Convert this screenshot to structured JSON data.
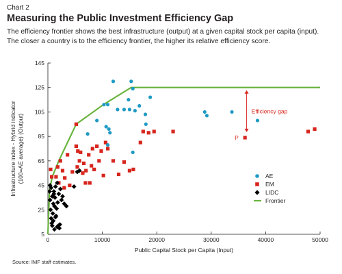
{
  "header": {
    "chart_label": "Chart 2",
    "title": "Measuring the Public Investment Efficiency Gap",
    "subtitle_line1": "The efficiency frontier shows the best infrastructure (output) at a given capital stock per capita (input).",
    "subtitle_line2": "The closer a country is to the efficiency frontier, the higher its relative efficiency score."
  },
  "source": "Source: IMF staff estimates.",
  "colors": {
    "AE": "#1e9ac4",
    "EM": "#d7261e",
    "LIDC": "#000000",
    "Frontier": "#6ab43e",
    "annotation": "#d7261e",
    "axis": "#231f20"
  },
  "chart_data": {
    "type": "scatter",
    "xlabel": "Public Capital Stock per Capita (Input)",
    "ylabel_line1": "Infrastructure index - Hybrid indicator",
    "ylabel_line2": "(100=AE average) (Output)",
    "xlim": [
      0,
      50000
    ],
    "ylim": [
      5,
      145
    ],
    "x_ticks": [
      0,
      10000,
      20000,
      30000,
      40000,
      50000
    ],
    "y_ticks": [
      5,
      25,
      45,
      65,
      85,
      105,
      125,
      145
    ],
    "legend_position": "bottom-right",
    "annotations": [
      {
        "text": "Efficiency gap",
        "x": 36500,
        "y_from": 84,
        "y_to": 125
      },
      {
        "text": "P",
        "x": 36200,
        "y": 84
      }
    ],
    "series": [
      {
        "name": "AE",
        "marker": "circle",
        "points": [
          [
            10300,
            111
          ],
          [
            11000,
            111
          ],
          [
            12800,
            107
          ],
          [
            14000,
            107
          ],
          [
            15000,
            107
          ],
          [
            14800,
            115
          ],
          [
            15600,
            124
          ],
          [
            18800,
            117
          ],
          [
            16000,
            106
          ],
          [
            16800,
            110
          ],
          [
            10700,
            93
          ],
          [
            11200,
            91
          ],
          [
            11400,
            88
          ],
          [
            9000,
            98
          ],
          [
            7300,
            87
          ],
          [
            11000,
            78
          ],
          [
            15600,
            72
          ],
          [
            18000,
            95
          ],
          [
            17900,
            103
          ],
          [
            28800,
            105
          ],
          [
            29200,
            102
          ],
          [
            33800,
            105
          ],
          [
            38500,
            98
          ],
          [
            12000,
            130
          ],
          [
            15300,
            130
          ]
        ]
      },
      {
        "name": "EM",
        "marker": "square",
        "points": [
          [
            500,
            58
          ],
          [
            700,
            52
          ],
          [
            1500,
            52
          ],
          [
            1800,
            60
          ],
          [
            2300,
            65
          ],
          [
            2700,
            57
          ],
          [
            3100,
            51
          ],
          [
            3600,
            70
          ],
          [
            4500,
            56
          ],
          [
            5200,
            77
          ],
          [
            5400,
            60
          ],
          [
            5500,
            73
          ],
          [
            5800,
            65
          ],
          [
            6000,
            72
          ],
          [
            6400,
            55
          ],
          [
            6600,
            63
          ],
          [
            7000,
            57
          ],
          [
            7500,
            70
          ],
          [
            7700,
            47
          ],
          [
            8000,
            61
          ],
          [
            8200,
            75
          ],
          [
            8500,
            58
          ],
          [
            9000,
            77
          ],
          [
            9400,
            65
          ],
          [
            9800,
            73
          ],
          [
            10200,
            53
          ],
          [
            10600,
            80
          ],
          [
            11000,
            75
          ],
          [
            12000,
            65
          ],
          [
            13000,
            54
          ],
          [
            14000,
            64
          ],
          [
            15000,
            57
          ],
          [
            15700,
            58
          ],
          [
            17000,
            80
          ],
          [
            17500,
            89
          ],
          [
            18500,
            88
          ],
          [
            19500,
            89
          ],
          [
            23000,
            89
          ],
          [
            36200,
            84
          ],
          [
            47800,
            89
          ],
          [
            49000,
            91
          ],
          [
            2000,
            47
          ],
          [
            4000,
            45
          ],
          [
            6900,
            47
          ],
          [
            5200,
            95
          ],
          [
            3000,
            43
          ]
        ]
      },
      {
        "name": "LIDC",
        "marker": "diamond",
        "points": [
          [
            300,
            40
          ],
          [
            400,
            33
          ],
          [
            500,
            25
          ],
          [
            600,
            18
          ],
          [
            700,
            14
          ],
          [
            800,
            12
          ],
          [
            900,
            22
          ],
          [
            1000,
            30
          ],
          [
            1100,
            38
          ],
          [
            1200,
            28
          ],
          [
            1300,
            35
          ],
          [
            1400,
            44
          ],
          [
            1500,
            20
          ],
          [
            1600,
            26
          ],
          [
            1700,
            47
          ],
          [
            1800,
            31
          ],
          [
            1900,
            12
          ],
          [
            2000,
            38
          ],
          [
            2100,
            10
          ],
          [
            2300,
            42
          ],
          [
            2500,
            33
          ],
          [
            2700,
            36
          ],
          [
            3000,
            30
          ],
          [
            3400,
            28
          ],
          [
            600,
            43
          ],
          [
            800,
            36
          ],
          [
            1000,
            16
          ],
          [
            1200,
            9
          ],
          [
            1400,
            19
          ],
          [
            1700,
            11
          ],
          [
            2200,
            13
          ],
          [
            4800,
            44
          ],
          [
            5400,
            56
          ],
          [
            5800,
            57
          ],
          [
            400,
            45
          ],
          [
            1100,
            40
          ]
        ]
      },
      {
        "name": "Frontier",
        "marker": "line",
        "points": [
          [
            0,
            5
          ],
          [
            300,
            41
          ],
          [
            800,
            52
          ],
          [
            2000,
            65
          ],
          [
            5200,
            95
          ],
          [
            10200,
            111
          ],
          [
            15300,
            125
          ],
          [
            50000,
            125
          ]
        ]
      }
    ]
  }
}
